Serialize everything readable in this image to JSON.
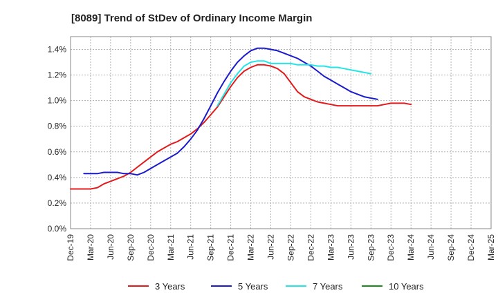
{
  "chart_data": {
    "type": "line",
    "title": "[8089]  Trend of StDev of Ordinary Income Margin",
    "xlabel": "",
    "ylabel": "",
    "x_tick_labels": [
      "Dec-19",
      "Mar-20",
      "Jun-20",
      "Sep-20",
      "Dec-20",
      "Mar-21",
      "Jun-21",
      "Sep-21",
      "Dec-21",
      "Mar-22",
      "Jun-22",
      "Sep-22",
      "Dec-22",
      "Mar-23",
      "Jun-23",
      "Sep-23",
      "Dec-23",
      "Mar-24",
      "Jun-24",
      "Sep-24",
      "Dec-24",
      "Mar-25"
    ],
    "y_tick_labels": [
      "0.0%",
      "0.2%",
      "0.4%",
      "0.6%",
      "0.8%",
      "1.0%",
      "1.2%",
      "1.4%"
    ],
    "ylim": [
      0,
      1.5
    ],
    "y_unit": "%",
    "grid": true,
    "legend_position": "bottom",
    "series": [
      {
        "name": "3 Years",
        "color": "#e31a1c",
        "start_index": 0,
        "values": [
          0.31,
          0.31,
          0.31,
          0.31,
          0.32,
          0.35,
          0.37,
          0.39,
          0.41,
          0.44,
          0.48,
          0.52,
          0.56,
          0.6,
          0.63,
          0.66,
          0.68,
          0.71,
          0.74,
          0.78,
          0.83,
          0.89,
          0.95,
          1.03,
          1.11,
          1.18,
          1.23,
          1.26,
          1.28,
          1.28,
          1.27,
          1.25,
          1.21,
          1.14,
          1.07,
          1.03,
          1.01,
          0.99,
          0.98,
          0.97,
          0.96,
          0.96,
          0.96,
          0.96,
          0.96,
          0.96,
          0.96,
          0.97,
          0.98,
          0.98,
          0.98,
          0.97
        ]
      },
      {
        "name": "5 Years",
        "color": "#1a1acc",
        "start_index": 2,
        "values": [
          0.43,
          0.43,
          0.43,
          0.44,
          0.44,
          0.44,
          0.43,
          0.43,
          0.42,
          0.44,
          0.47,
          0.5,
          0.53,
          0.56,
          0.59,
          0.64,
          0.7,
          0.77,
          0.86,
          0.96,
          1.06,
          1.15,
          1.23,
          1.3,
          1.35,
          1.39,
          1.41,
          1.41,
          1.4,
          1.39,
          1.37,
          1.35,
          1.33,
          1.3,
          1.27,
          1.23,
          1.19,
          1.16,
          1.13,
          1.1,
          1.07,
          1.05,
          1.03,
          1.02,
          1.01
        ]
      },
      {
        "name": "7 Years",
        "color": "#22e6e6",
        "start_index": 22,
        "values": [
          0.96,
          1.05,
          1.14,
          1.21,
          1.27,
          1.3,
          1.31,
          1.31,
          1.29,
          1.29,
          1.29,
          1.29,
          1.28,
          1.28,
          1.28,
          1.27,
          1.27,
          1.26,
          1.26,
          1.25,
          1.24,
          1.23,
          1.22,
          1.21
        ]
      },
      {
        "name": "10 Years",
        "color": "#1a8a1a",
        "start_index": 0,
        "values": []
      }
    ]
  }
}
